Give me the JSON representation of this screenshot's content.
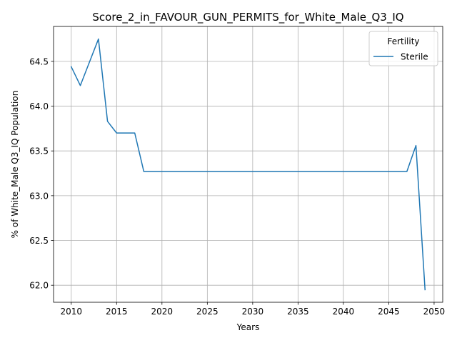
{
  "chart_data": {
    "type": "line",
    "title": "Score_2_in_FAVOUR_GUN_PERMITS_for_White_Male_Q3_IQ",
    "xlabel": "Years",
    "ylabel": "% of White_Male Q3_IQ Population",
    "xlim": [
      2008.05,
      2050.95
    ],
    "ylim": [
      61.81,
      64.89
    ],
    "xticks": [
      2010,
      2015,
      2020,
      2025,
      2030,
      2035,
      2040,
      2045,
      2050
    ],
    "yticks": [
      62.0,
      62.5,
      63.0,
      63.5,
      64.0,
      64.5
    ],
    "ytick_labels": [
      "62.0",
      "62.5",
      "63.0",
      "63.5",
      "64.0",
      "64.5"
    ],
    "grid": true,
    "legend": {
      "title": "Fertility",
      "position": "top-right"
    },
    "series": [
      {
        "name": "Sterile",
        "color": "#1f77b4",
        "x": [
          2010,
          2011,
          2012,
          2013,
          2014,
          2015,
          2016,
          2017,
          2018,
          2019,
          2020,
          2021,
          2022,
          2023,
          2024,
          2025,
          2026,
          2027,
          2028,
          2029,
          2030,
          2031,
          2032,
          2033,
          2034,
          2035,
          2036,
          2037,
          2038,
          2039,
          2040,
          2041,
          2042,
          2043,
          2044,
          2045,
          2046,
          2047,
          2048,
          2049
        ],
        "y": [
          64.44,
          64.23,
          64.49,
          64.75,
          63.83,
          63.7,
          63.7,
          63.7,
          63.27,
          63.27,
          63.27,
          63.27,
          63.27,
          63.27,
          63.27,
          63.27,
          63.27,
          63.27,
          63.27,
          63.27,
          63.27,
          63.27,
          63.27,
          63.27,
          63.27,
          63.27,
          63.27,
          63.27,
          63.27,
          63.27,
          63.27,
          63.27,
          63.27,
          63.27,
          63.27,
          63.27,
          63.27,
          63.27,
          63.56,
          61.95
        ]
      }
    ]
  }
}
